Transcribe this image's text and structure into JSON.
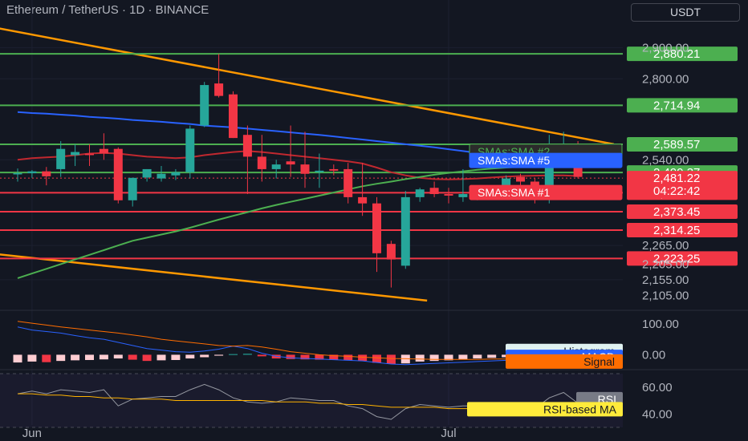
{
  "header": {
    "title": "Ethereum / TetherUS · 1D · BINANCE",
    "currency": "USDT"
  },
  "colors": {
    "up": "#26a69a",
    "down": "#f23645",
    "support_line": "#4caf50",
    "resistance_line": "#f23645",
    "trendline": "#ff9800",
    "sma1": "#c0282f",
    "sma2": "#4caf50",
    "sma5": "#2962ff"
  },
  "chart_data": [
    {
      "type": "candlestick",
      "symbol": "Ethereum / TetherUS",
      "interval": "1D",
      "exchange": "BINANCE",
      "x_tick_labels": [
        "Jun",
        "Jul"
      ],
      "y_axis_labels": [
        "2,900.00",
        "2,800.00",
        "2,540.00",
        "2,265.00",
        "2,205.00",
        "2,155.00",
        "2,105.00"
      ],
      "ylim": [
        2080,
        2950
      ],
      "candles": [
        {
          "o": 2497,
          "h": 2512,
          "l": 2470,
          "c": 2497
        },
        {
          "o": 2497,
          "h": 2507,
          "l": 2482,
          "c": 2503
        },
        {
          "o": 2503,
          "h": 2517,
          "l": 2458,
          "c": 2487
        },
        {
          "o": 2510,
          "h": 2600,
          "l": 2485,
          "c": 2575
        },
        {
          "o": 2555,
          "h": 2590,
          "l": 2520,
          "c": 2565
        },
        {
          "o": 2560,
          "h": 2590,
          "l": 2520,
          "c": 2555
        },
        {
          "o": 2575,
          "h": 2625,
          "l": 2540,
          "c": 2560
        },
        {
          "o": 2575,
          "h": 2580,
          "l": 2400,
          "c": 2410
        },
        {
          "o": 2410,
          "h": 2483,
          "l": 2390,
          "c": 2482
        },
        {
          "o": 2483,
          "h": 2510,
          "l": 2470,
          "c": 2510
        },
        {
          "o": 2480,
          "h": 2520,
          "l": 2470,
          "c": 2495
        },
        {
          "o": 2490,
          "h": 2510,
          "l": 2475,
          "c": 2500
        },
        {
          "o": 2500,
          "h": 2650,
          "l": 2480,
          "c": 2640
        },
        {
          "o": 2650,
          "h": 2790,
          "l": 2645,
          "c": 2780
        },
        {
          "o": 2785,
          "h": 2880,
          "l": 2740,
          "c": 2745
        },
        {
          "o": 2750,
          "h": 2760,
          "l": 2610,
          "c": 2610
        },
        {
          "o": 2620,
          "h": 2650,
          "l": 2430,
          "c": 2550
        },
        {
          "o": 2550,
          "h": 2620,
          "l": 2470,
          "c": 2510
        },
        {
          "o": 2510,
          "h": 2540,
          "l": 2480,
          "c": 2525
        },
        {
          "o": 2535,
          "h": 2650,
          "l": 2485,
          "c": 2525
        },
        {
          "o": 2525,
          "h": 2630,
          "l": 2450,
          "c": 2495
        },
        {
          "o": 2500,
          "h": 2560,
          "l": 2450,
          "c": 2505
        },
        {
          "o": 2510,
          "h": 2525,
          "l": 2490,
          "c": 2505
        },
        {
          "o": 2510,
          "h": 2530,
          "l": 2400,
          "c": 2420
        },
        {
          "o": 2420,
          "h": 2530,
          "l": 2360,
          "c": 2400
        },
        {
          "o": 2400,
          "h": 2420,
          "l": 2180,
          "c": 2240
        },
        {
          "o": 2270,
          "h": 2280,
          "l": 2130,
          "c": 2220
        },
        {
          "o": 2200,
          "h": 2440,
          "l": 2190,
          "c": 2420
        },
        {
          "o": 2420,
          "h": 2450,
          "l": 2405,
          "c": 2445
        },
        {
          "o": 2450,
          "h": 2470,
          "l": 2420,
          "c": 2430
        },
        {
          "o": 2430,
          "h": 2450,
          "l": 2400,
          "c": 2425
        },
        {
          "o": 2420,
          "h": 2510,
          "l": 2405,
          "c": 2430
        },
        {
          "o": 2430,
          "h": 2450,
          "l": 2410,
          "c": 2440
        },
        {
          "o": 2430,
          "h": 2455,
          "l": 2420,
          "c": 2440
        },
        {
          "o": 2435,
          "h": 2490,
          "l": 2420,
          "c": 2480
        },
        {
          "o": 2485,
          "h": 2495,
          "l": 2450,
          "c": 2470
        },
        {
          "o": 2470,
          "h": 2480,
          "l": 2400,
          "c": 2420
        },
        {
          "o": 2420,
          "h": 2620,
          "l": 2400,
          "c": 2580
        },
        {
          "o": 2580,
          "h": 2630,
          "l": 2560,
          "c": 2590
        },
        {
          "o": 2590,
          "h": 2600,
          "l": 2480,
          "c": 2485
        }
      ],
      "horizontal_levels": [
        {
          "value": 2880.21,
          "label": "2,880.21",
          "type": "support"
        },
        {
          "value": 2714.94,
          "label": "2,714.94",
          "type": "support"
        },
        {
          "value": 2589.57,
          "label": "2,589.57",
          "type": "support"
        },
        {
          "value": 2499.37,
          "label": "2,499.37",
          "type": "support"
        },
        {
          "value": 2434.17,
          "label": "2,434.17",
          "type": "resistance"
        },
        {
          "value": 2373.45,
          "label": "2,373.45",
          "type": "resistance"
        },
        {
          "value": 2314.25,
          "label": "2,314.25",
          "type": "resistance"
        },
        {
          "value": 2223.25,
          "label": "2,223.25",
          "type": "resistance"
        }
      ],
      "current_price": {
        "label": "2,481.22",
        "countdown": "04:22:42",
        "value": 2481.22
      },
      "trendlines": [
        {
          "from": [
            -2,
            2968
          ],
          "to": [
            41.5,
            2590
          ]
        },
        {
          "from": [
            -2,
            2240
          ],
          "to": [
            28.5,
            2088
          ]
        }
      ],
      "series": [
        {
          "name": "SMAs:SMA #1",
          "label": "SMAs:SMA #1",
          "values": [
            2540,
            2545,
            2548,
            2550,
            2555,
            2560,
            2562,
            2560,
            2555,
            2550,
            2548,
            2545,
            2548,
            2555,
            2560,
            2565,
            2568,
            2565,
            2560,
            2555,
            2550,
            2545,
            2540,
            2535,
            2528,
            2515,
            2500,
            2490,
            2482,
            2478,
            2477,
            2478,
            2480,
            2483,
            2486,
            2488,
            2489,
            2490,
            2490,
            2488
          ]
        },
        {
          "name": "SMAs:SMA #2",
          "label": "SMAs:SMA #2",
          "values": [
            2160,
            2175,
            2190,
            2205,
            2220,
            2235,
            2250,
            2265,
            2280,
            2290,
            2300,
            2310,
            2322,
            2335,
            2348,
            2360,
            2372,
            2384,
            2395,
            2405,
            2415,
            2425,
            2435,
            2445,
            2455,
            2463,
            2470,
            2478,
            2485,
            2492,
            2498,
            2503,
            2508,
            2512,
            2515,
            2518,
            2520,
            2520,
            2520,
            2520
          ]
        },
        {
          "name": "SMAs:SMA #5",
          "label": "SMAs:SMA #5",
          "values": [
            2693,
            2690,
            2688,
            2685,
            2682,
            2678,
            2675,
            2672,
            2668,
            2665,
            2662,
            2658,
            2655,
            2650,
            2647,
            2644,
            2640,
            2636,
            2632,
            2628,
            2624,
            2620,
            2615,
            2610,
            2605,
            2600,
            2595,
            2590,
            2585,
            2580,
            2574,
            2568,
            2562,
            2556,
            2550,
            2545,
            2540,
            2535,
            2530,
            2525
          ]
        }
      ],
      "label_tags": [
        "SMAs:SMA #2",
        "SMAs:SMA #5",
        "SMAs:SMA #1"
      ]
    },
    {
      "type": "bar",
      "name": "MACD",
      "y_axis_labels": [
        "100.00",
        "0.00"
      ],
      "ylim": [
        -30,
        110
      ],
      "histogram": [
        -25,
        -22,
        -24,
        -20,
        -18,
        -17,
        -15,
        -12,
        -16,
        -20,
        -18,
        -17,
        -12,
        -8,
        -3,
        2,
        3,
        -5,
        -12,
        -14,
        -15,
        -16,
        -17,
        -18,
        -20,
        -26,
        -30,
        -28,
        -22,
        -20,
        -18,
        -15,
        -12,
        -10,
        -8,
        -6,
        -4,
        6,
        8,
        10
      ],
      "macd": [
        90,
        80,
        75,
        70,
        62,
        55,
        50,
        40,
        30,
        20,
        15,
        10,
        8,
        12,
        18,
        28,
        20,
        5,
        -5,
        -10,
        -12,
        -14,
        -16,
        -18,
        -20,
        -25,
        -30,
        -32,
        -30,
        -28,
        -26,
        -24,
        -22,
        -20,
        -18,
        -16,
        -12,
        -5,
        0,
        2
      ],
      "signal": [
        108,
        102,
        96,
        90,
        85,
        80,
        75,
        70,
        64,
        58,
        50,
        45,
        40,
        35,
        30,
        28,
        30,
        25,
        18,
        10,
        5,
        0,
        -3,
        -5,
        -8,
        -10,
        -12,
        -13,
        -14,
        -15,
        -15,
        -15,
        -15,
        -14,
        -14,
        -13,
        -12,
        -10,
        -8,
        -6
      ],
      "legend_tags": [
        "Histogram",
        "MACD",
        "Signal"
      ]
    },
    {
      "type": "line",
      "name": "RSI",
      "y_axis_labels": [
        "60.00",
        "40.00"
      ],
      "ylim": [
        33,
        70
      ],
      "series": [
        {
          "name": "RSI",
          "values": [
            55,
            57,
            55,
            58,
            57,
            56,
            58,
            46,
            51,
            52,
            53,
            53,
            58,
            62,
            58,
            52,
            49,
            48,
            49,
            52,
            51,
            50,
            50,
            46,
            44,
            38,
            36,
            44,
            47,
            46,
            45,
            46,
            46,
            46,
            47,
            46,
            44,
            52,
            56,
            48
          ]
        },
        {
          "name": "RSI-based MA",
          "values": [
            55,
            55,
            54,
            54,
            53,
            53,
            52,
            52,
            51,
            51,
            51,
            50,
            50,
            50,
            50,
            50,
            50,
            50,
            49,
            49,
            49,
            48,
            48,
            47,
            47,
            46,
            45,
            45,
            45,
            45,
            44,
            44,
            44,
            44,
            44,
            45,
            45,
            45,
            45,
            46
          ]
        }
      ],
      "legend_tags": [
        "RSI",
        "RSI-based MA"
      ]
    }
  ]
}
